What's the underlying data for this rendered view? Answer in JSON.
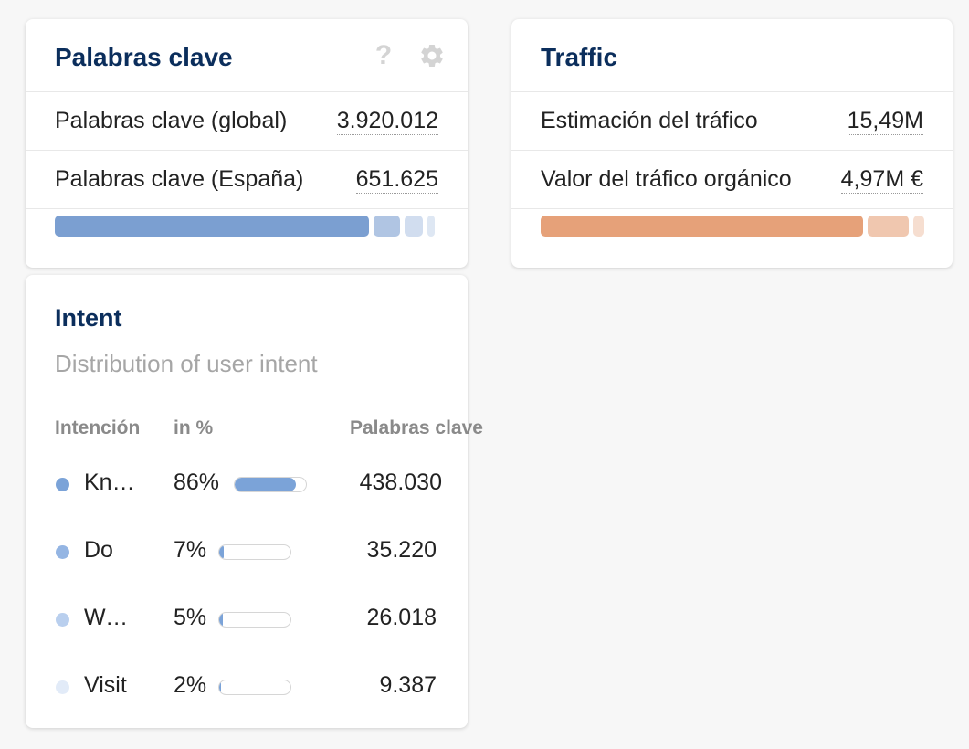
{
  "keywords_card": {
    "title": "Palabras clave",
    "help_icon_glyph": "?",
    "rows": [
      {
        "label": "Palabras clave (global)",
        "value": "3.920.012"
      },
      {
        "label": "Palabras clave (España)",
        "value": "651.625"
      }
    ],
    "bar": {
      "color": "#7b9fd1",
      "segments": [
        0.85,
        0.07,
        0.05,
        0.02
      ]
    }
  },
  "traffic_card": {
    "title": "Traffic",
    "rows": [
      {
        "label": "Estimación del tráfico",
        "value": "15,49M"
      },
      {
        "label": "Valor del tráfico orgánico",
        "value": "4,97M €"
      }
    ],
    "bar": {
      "color": "#e6a179",
      "segments": [
        0.86,
        0.11,
        0.03
      ]
    }
  },
  "intent_card": {
    "title": "Intent",
    "subtitle": "Distribution of user intent",
    "headers": {
      "intent": "Intención",
      "percent": "in %",
      "keywords": "Palabras clave"
    },
    "rows": [
      {
        "name": "Know",
        "percent": "86%",
        "share": 0.86,
        "count": "438.030",
        "dot_color": "#7ba3d8"
      },
      {
        "name": "Do",
        "percent": "7%",
        "share": 0.07,
        "count": "35.220",
        "dot_color": "#94b5e3"
      },
      {
        "name": "Website",
        "percent": "5%",
        "share": 0.05,
        "count": "26.018",
        "dot_color": "#b9cfee"
      },
      {
        "name": "Visit",
        "percent": "2%",
        "share": 0.02,
        "count": "9.387",
        "dot_color": "#e2ebf8"
      }
    ]
  }
}
